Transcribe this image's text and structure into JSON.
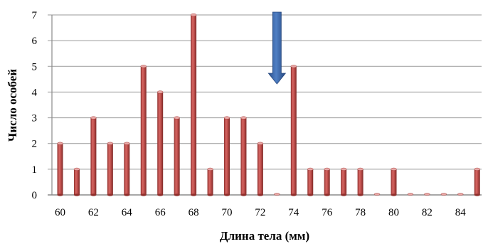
{
  "chart_data": {
    "type": "bar",
    "title": "",
    "xlabel": "Длина тела (мм)",
    "ylabel": "Число особей",
    "ylim": [
      0,
      7
    ],
    "y_ticks": [
      "0",
      "1",
      "2",
      "3",
      "4",
      "5",
      "6",
      "7"
    ],
    "x_tick_labels": [
      "60",
      "62",
      "64",
      "66",
      "68",
      "70",
      "72",
      "74",
      "76",
      "78",
      "80",
      "82",
      "84"
    ],
    "categories": [
      60,
      61,
      62,
      63,
      64,
      65,
      66,
      67,
      68,
      69,
      70,
      71,
      72,
      73,
      74,
      75,
      76,
      77,
      78,
      79,
      80,
      81,
      82,
      83,
      84,
      85
    ],
    "values": [
      2,
      1,
      3,
      2,
      2,
      5,
      4,
      3,
      7,
      1,
      3,
      3,
      2,
      0,
      5,
      1,
      1,
      1,
      1,
      0,
      1,
      0,
      0,
      0,
      0,
      1
    ],
    "grid": true,
    "legend": "none",
    "bar_color": "#c0504d",
    "bar_highlight": "#e8a8a6",
    "marker": {
      "type": "down-arrow",
      "at_x": 73,
      "color": "#3c6ab0"
    }
  }
}
